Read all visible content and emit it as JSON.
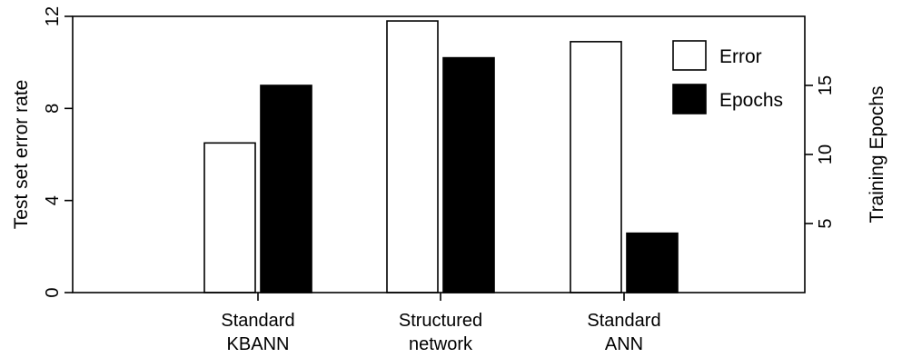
{
  "chart_data": {
    "type": "bar",
    "categories": [
      [
        "Standard",
        "KBANN"
      ],
      [
        "Structured",
        "network"
      ],
      [
        "Standard",
        "ANN"
      ]
    ],
    "series": [
      {
        "name": "Error",
        "axis": "left",
        "values": [
          6.5,
          11.8,
          10.9
        ],
        "color": "#ffffff"
      },
      {
        "name": "Epochs",
        "axis": "right",
        "values": [
          15,
          17,
          4.3
        ],
        "color": "#000000"
      }
    ],
    "y_left": {
      "label": "Test set error rate",
      "ticks": [
        0,
        4,
        8,
        12
      ],
      "ylim": [
        0,
        12
      ]
    },
    "y_right": {
      "label": "Training Epochs",
      "ticks": [
        5,
        10,
        15
      ],
      "ylim": [
        0,
        20
      ]
    },
    "legend": {
      "placement": "top-right",
      "entries": [
        "Error",
        "Epochs"
      ]
    },
    "grid": false
  }
}
